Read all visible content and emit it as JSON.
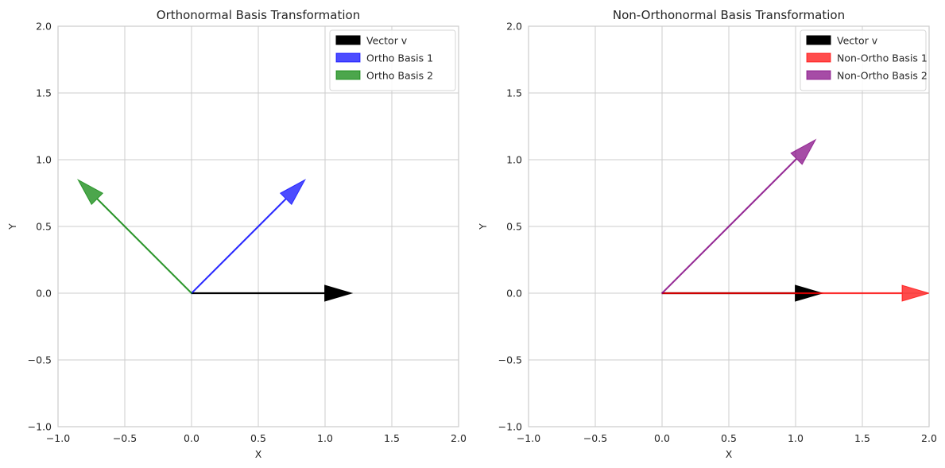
{
  "chart_data": [
    {
      "type": "vector",
      "title": "Orthonormal Basis Transformation",
      "xlabel": "X",
      "ylabel": "Y",
      "xlim": [
        -1,
        2
      ],
      "ylim": [
        -1,
        2
      ],
      "xticks": [
        -1.0,
        -0.5,
        0.0,
        0.5,
        1.0,
        1.5,
        2.0
      ],
      "yticks": [
        -1.0,
        -0.5,
        0.0,
        0.5,
        1.0,
        1.5,
        2.0
      ],
      "xtick_labels": [
        "−1.0",
        "−0.5",
        "0.0",
        "0.5",
        "1.0",
        "1.5",
        "2.0"
      ],
      "ytick_labels": [
        "−1.0",
        "−0.5",
        "0.0",
        "0.5",
        "1.0",
        "1.5",
        "2.0"
      ],
      "grid": true,
      "legend_position": "top-right",
      "series": [
        {
          "name": "Vector v",
          "color": "#000000",
          "opacity": 1.0,
          "origin": [
            0,
            0
          ],
          "vector": [
            1.2,
            0.0
          ]
        },
        {
          "name": "Ortho Basis 1",
          "color": "#0000ff",
          "opacity": 0.7,
          "origin": [
            0,
            0
          ],
          "vector": [
            0.85,
            0.85
          ]
        },
        {
          "name": "Ortho Basis 2",
          "color": "#008000",
          "opacity": 0.7,
          "origin": [
            0,
            0
          ],
          "vector": [
            -0.85,
            0.85
          ]
        }
      ]
    },
    {
      "type": "vector",
      "title": "Non-Orthonormal Basis Transformation",
      "xlabel": "X",
      "ylabel": "Y",
      "xlim": [
        -1,
        2
      ],
      "ylim": [
        -1,
        2
      ],
      "xticks": [
        -1.0,
        -0.5,
        0.0,
        0.5,
        1.0,
        1.5,
        2.0
      ],
      "yticks": [
        -1.0,
        -0.5,
        0.0,
        0.5,
        1.0,
        1.5,
        2.0
      ],
      "xtick_labels": [
        "−1.0",
        "−0.5",
        "0.0",
        "0.5",
        "1.0",
        "1.5",
        "2.0"
      ],
      "ytick_labels": [
        "−1.0",
        "−0.5",
        "0.0",
        "0.5",
        "1.0",
        "1.5",
        "2.0"
      ],
      "grid": true,
      "legend_position": "top-right",
      "series": [
        {
          "name": "Vector v",
          "color": "#000000",
          "opacity": 1.0,
          "origin": [
            0,
            0
          ],
          "vector": [
            1.2,
            0.0
          ]
        },
        {
          "name": "Non-Ortho Basis 1",
          "color": "#ff0000",
          "opacity": 0.7,
          "origin": [
            0,
            0
          ],
          "vector": [
            2.0,
            0.0
          ]
        },
        {
          "name": "Non-Ortho Basis 2",
          "color": "#800080",
          "opacity": 0.7,
          "origin": [
            0,
            0
          ],
          "vector": [
            1.15,
            1.15
          ]
        }
      ]
    }
  ]
}
